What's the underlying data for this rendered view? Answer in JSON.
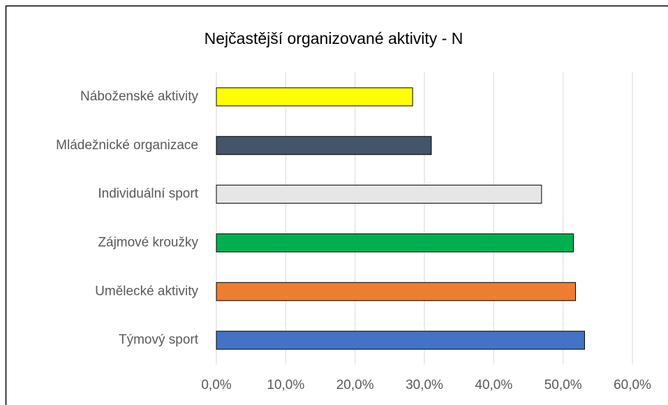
{
  "chart_data": {
    "type": "hbar",
    "title": "Nejčastější organizované aktivity - N",
    "categories": [
      "Náboženské aktivity",
      "Mládežnické organizace",
      "Individuální sport",
      "Zájmové kroužky",
      "Umělecké aktivity",
      "Týmový sport"
    ],
    "values": [
      28.3,
      31.0,
      46.9,
      51.5,
      51.8,
      53.1
    ],
    "colors": [
      "#ffff00",
      "#44546a",
      "#e7e6e6",
      "#00b050",
      "#ed7d31",
      "#4472c4"
    ],
    "xlim": [
      0,
      60
    ],
    "xticks": [
      {
        "value": 0,
        "label": "0,0%"
      },
      {
        "value": 10,
        "label": "10,0%"
      },
      {
        "value": 20,
        "label": "20,0%"
      },
      {
        "value": 30,
        "label": "30,0%"
      },
      {
        "value": 40,
        "label": "40,0%"
      },
      {
        "value": 50,
        "label": "50,0%"
      },
      {
        "value": 60,
        "label": "60,0%"
      }
    ],
    "grid": true
  }
}
